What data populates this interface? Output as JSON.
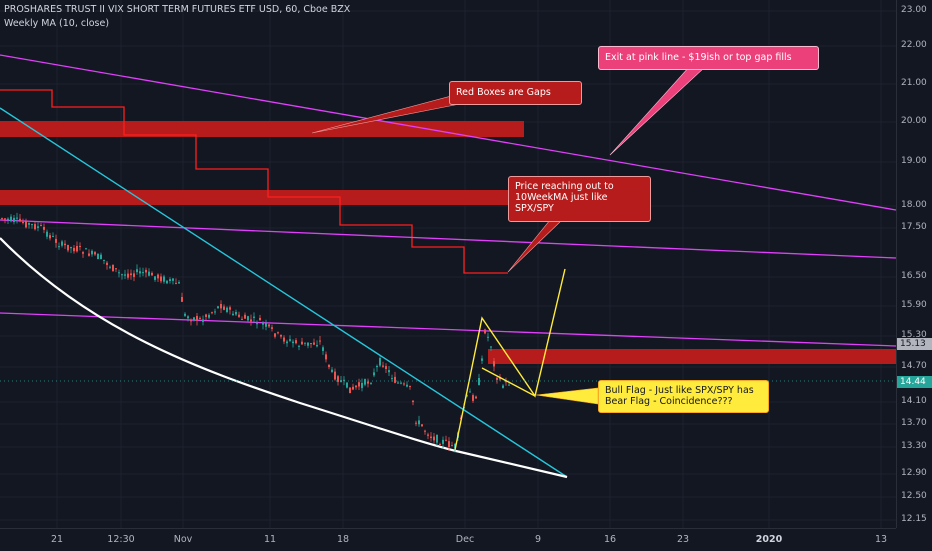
{
  "header": {
    "symbol_line": "PROSHARES TRUST II VIX SHORT TERM FUTURES ETF USD, 60, Cboe BZX",
    "indicator_line": "Weekly MA (10, close)"
  },
  "price_axis": {
    "labels": [
      "23.00",
      "22.00",
      "21.00",
      "20.00",
      "19.00",
      "18.00",
      "17.50",
      "16.50",
      "15.90",
      "15.30",
      "14.70",
      "14.10",
      "13.70",
      "13.30",
      "12.90",
      "12.50",
      "12.15"
    ],
    "tags": [
      {
        "text": "15.13",
        "bg": "#b2b5be",
        "color": "#131722"
      },
      {
        "text": "14.44",
        "bg": "#26a69a",
        "color": "#ffffff"
      }
    ]
  },
  "time_axis": {
    "labels": [
      "21",
      "12:30",
      "Nov",
      "11",
      "18",
      "Dec",
      "9",
      "16",
      "23",
      "2020",
      "13"
    ]
  },
  "annotations": {
    "gaps": "Red Boxes are Gaps",
    "exit": "Exit at pink line - $19ish or top gap fills",
    "ma": "Price reaching out to 10WeekMA just like SPX/SPY",
    "flag": "Bull Flag - Just like SPX/SPY has Bear Flag - Coincidence???"
  },
  "colors": {
    "background": "#131722",
    "gap_box": "#b71c1c",
    "weekly_ma": "#ff1e1e",
    "magenta_line": "#e040fb",
    "cyan_line": "#26c6da",
    "white_curve": "#ffffff",
    "flag": "#ffeb3b",
    "up_candle": "#26a69a",
    "down_candle": "#ef5350"
  }
}
